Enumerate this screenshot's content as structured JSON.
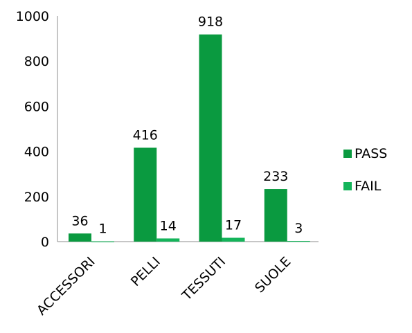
{
  "chart_data": {
    "type": "bar",
    "title": "",
    "xlabel": "",
    "ylabel": "",
    "categories": [
      "ACCESSORI",
      "PELLI",
      "TESSUTI",
      "SUOLE"
    ],
    "series": [
      {
        "name": "PASS",
        "values": [
          36,
          416,
          918,
          233
        ],
        "color": "#0a9a40"
      },
      {
        "name": "FAIL",
        "values": [
          1,
          14,
          17,
          3
        ],
        "color": "#14b45a"
      }
    ],
    "ylim": [
      0,
      1000
    ],
    "yticks": [
      0,
      200,
      400,
      600,
      800,
      1000
    ],
    "grid": false,
    "legend": "right",
    "data_labels": true
  }
}
